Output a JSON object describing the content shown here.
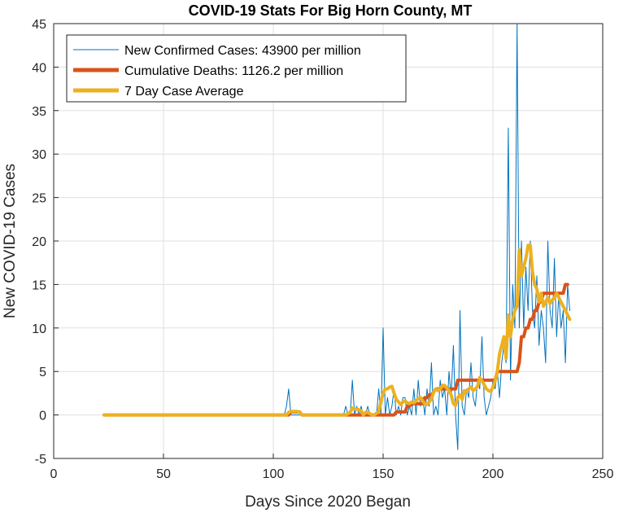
{
  "chart_data": {
    "type": "line",
    "title": "COVID-19 Stats For Big Horn County, MT",
    "xlabel": "Days Since 2020 Began",
    "ylabel": "New COVID-19 Cases",
    "xlim": [
      0,
      250
    ],
    "ylim": [
      -5,
      45
    ],
    "xticks": [
      0,
      50,
      100,
      150,
      200,
      250
    ],
    "yticks": [
      -5,
      0,
      5,
      10,
      15,
      20,
      25,
      30,
      35,
      40,
      45
    ],
    "grid": true,
    "legend_position": "top-left",
    "series": [
      {
        "name": "New Confirmed Cases: 43900 per million",
        "color": "#0072BD",
        "line_width": 1,
        "x": [
          23,
          105,
          106,
          107,
          108,
          109,
          110,
          130,
          132,
          133,
          134,
          135,
          136,
          137,
          138,
          139,
          140,
          141,
          142,
          143,
          144,
          145,
          146,
          147,
          148,
          149,
          150,
          151,
          152,
          153,
          154,
          155,
          156,
          157,
          158,
          159,
          160,
          161,
          162,
          163,
          164,
          165,
          166,
          167,
          168,
          169,
          170,
          171,
          172,
          173,
          174,
          175,
          176,
          177,
          178,
          179,
          180,
          181,
          182,
          183,
          184,
          185,
          186,
          187,
          188,
          189,
          190,
          191,
          192,
          193,
          194,
          195,
          196,
          197,
          198,
          199,
          200,
          201,
          202,
          203,
          204,
          205,
          206,
          207,
          208,
          209,
          210,
          211,
          212,
          213,
          214,
          215,
          216,
          217,
          218,
          219,
          220,
          221,
          222,
          223,
          224,
          225,
          226,
          227,
          228,
          229,
          230,
          231,
          232,
          233,
          234,
          235
        ],
        "y": [
          0,
          0,
          1,
          3,
          0,
          0,
          0,
          0,
          0,
          1,
          0,
          0,
          4,
          0,
          1,
          0,
          1,
          0,
          0,
          1,
          0,
          0,
          0,
          0,
          3,
          0,
          10,
          0,
          2,
          0,
          1,
          3,
          0,
          1,
          0,
          2,
          2,
          0,
          1,
          0,
          3,
          0,
          4,
          1,
          2,
          0,
          3,
          1,
          6,
          0,
          1,
          0,
          4,
          2,
          3,
          0,
          5,
          2,
          8,
          0,
          -4,
          12,
          1,
          0,
          3,
          2,
          6,
          2,
          1,
          4,
          3,
          9,
          2,
          0,
          1,
          2,
          4,
          3,
          5,
          2,
          6,
          8,
          6,
          33,
          4,
          15,
          10,
          45,
          10,
          20,
          10,
          17,
          12,
          20,
          12,
          10,
          16,
          8,
          12,
          10,
          6,
          20,
          12,
          10,
          18,
          9,
          14,
          10,
          12,
          6,
          15,
          12
        ]
      },
      {
        "name": "Cumulative Deaths: 1126.2 per million",
        "color": "#D95319",
        "line_width": 4,
        "x": [
          23,
          107,
          108,
          112,
          113,
          155,
          156,
          160,
          161,
          162,
          163,
          164,
          168,
          169,
          170,
          171,
          172,
          174,
          175,
          176,
          178,
          179,
          182,
          183,
          184,
          192,
          193,
          201,
          202,
          206,
          207,
          208,
          209,
          210,
          211,
          212,
          213,
          214,
          215,
          216,
          217,
          218,
          219,
          220,
          221,
          222,
          223,
          224,
          225,
          226,
          227,
          228,
          229,
          230,
          231,
          232,
          233,
          234
        ],
        "y": [
          0,
          0,
          0.35,
          0.35,
          0,
          0,
          0.35,
          0.35,
          1,
          1,
          1.3,
          1.3,
          1.3,
          2,
          2,
          2.3,
          2.3,
          3,
          3,
          3,
          3,
          3,
          3,
          3,
          4,
          4,
          4,
          4,
          5,
          5,
          5,
          5,
          5,
          5,
          5,
          6,
          9,
          9,
          10,
          10,
          11,
          11,
          12,
          12,
          13,
          13,
          14,
          14,
          14,
          14,
          14,
          14,
          14,
          14,
          14,
          14,
          15,
          15
        ]
      },
      {
        "name": "7 Day Case Average",
        "color": "#EDB120",
        "line_width": 4,
        "x": [
          23,
          106,
          107,
          108,
          109,
          110,
          111,
          112,
          113,
          130,
          133,
          135,
          136,
          137,
          138,
          139,
          140,
          141,
          142,
          143,
          145,
          146,
          148,
          149,
          150,
          151,
          152,
          153,
          154,
          155,
          156,
          157,
          158,
          159,
          160,
          161,
          162,
          163,
          164,
          165,
          166,
          167,
          168,
          169,
          170,
          171,
          172,
          173,
          174,
          175,
          176,
          177,
          178,
          179,
          180,
          181,
          182,
          183,
          184,
          185,
          186,
          187,
          188,
          189,
          190,
          191,
          192,
          193,
          194,
          195,
          196,
          197,
          198,
          199,
          200,
          201,
          202,
          203,
          204,
          205,
          206,
          207,
          208,
          209,
          210,
          211,
          212,
          213,
          214,
          215,
          216,
          217,
          218,
          219,
          220,
          221,
          222,
          223,
          224,
          225,
          226,
          227,
          228,
          229,
          230,
          231,
          232,
          233,
          234,
          235
        ],
        "y": [
          0,
          0,
          0.3,
          0.4,
          0.4,
          0.4,
          0.4,
          0.3,
          0,
          0,
          0,
          0.3,
          0.8,
          0.7,
          0.7,
          0.6,
          0.5,
          0,
          0.3,
          0.3,
          0,
          0,
          0.4,
          1.5,
          2.5,
          3,
          3,
          3.2,
          3.3,
          2.5,
          1.8,
          1.5,
          1.2,
          1.5,
          1.6,
          1.4,
          1.3,
          1.5,
          1.4,
          1.6,
          1.9,
          2,
          1.6,
          1.3,
          1.2,
          1.5,
          1.8,
          2.6,
          3,
          2.8,
          3,
          3.4,
          3.4,
          3.1,
          2.8,
          2.3,
          1.3,
          1.1,
          2,
          2.3,
          1.8,
          2.8,
          2.7,
          3,
          3.2,
          2.8,
          3,
          3.3,
          4.3,
          3.9,
          3.5,
          3,
          2.8,
          2.7,
          3.2,
          3.9,
          5,
          7,
          8,
          9,
          6.5,
          11.5,
          9,
          11,
          12,
          12.5,
          19,
          16,
          17,
          18,
          19.5,
          19.5,
          16.5,
          15,
          14.5,
          13,
          14,
          12.5,
          13,
          13.5,
          12.8,
          13.2,
          13.5,
          14,
          13.5,
          13,
          12.5,
          12,
          11.5,
          11
        ]
      }
    ]
  }
}
